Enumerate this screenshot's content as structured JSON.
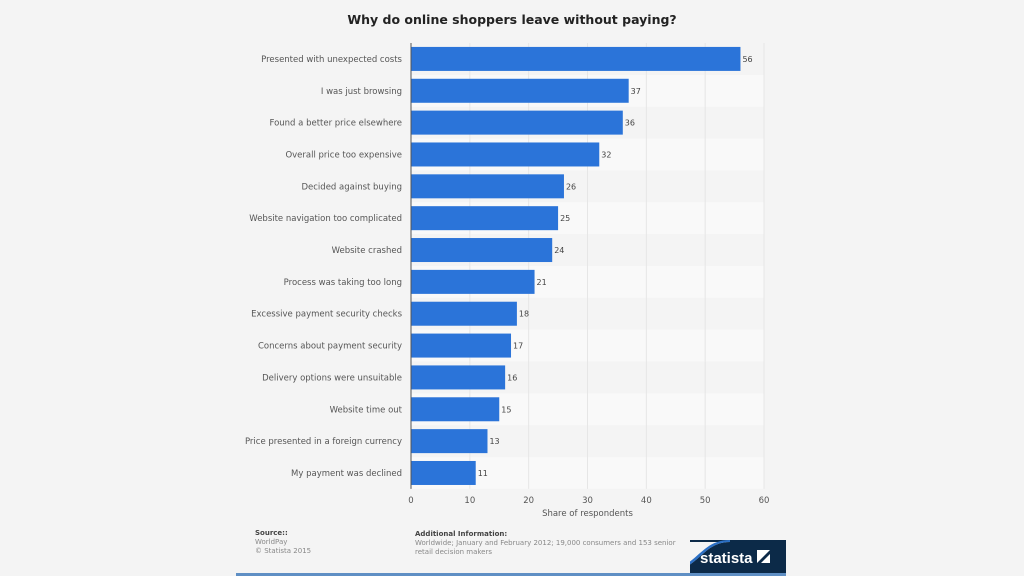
{
  "chart_data": {
    "type": "bar",
    "orientation": "horizontal",
    "title": "Why do online shoppers leave without paying?",
    "xlabel": "Share of respondents",
    "ylabel": "",
    "xlim": [
      0,
      60
    ],
    "xticks": [
      0,
      10,
      20,
      30,
      40,
      50,
      60
    ],
    "grid": true,
    "categories": [
      "Presented with unexpected costs",
      "I was just browsing",
      "Found a better price elsewhere",
      "Overall price too expensive",
      "Decided against buying",
      "Website navigation too complicated",
      "Website crashed",
      "Process was taking too long",
      "Excessive payment security checks",
      "Concerns about payment security",
      "Delivery options were unsuitable",
      "Website time out",
      "Price presented in a foreign currency",
      "My payment was declined"
    ],
    "values": [
      56,
      37,
      36,
      32,
      26,
      25,
      24,
      21,
      18,
      17,
      16,
      15,
      13,
      11
    ],
    "bar_color": "#2b74d9"
  },
  "footer": {
    "source_label": "Source::",
    "source_lines": [
      "WorldPay",
      "© Statista 2015"
    ],
    "info_label": "Additional Information:",
    "info_lines": [
      "Worldwide; January and February 2012; 19,000 consumers and 153 senior",
      "retail decision makers"
    ],
    "brand": "statista"
  },
  "colors": {
    "brand_dark": "#0c2a48",
    "brand_wave": "#2b6fc4"
  }
}
